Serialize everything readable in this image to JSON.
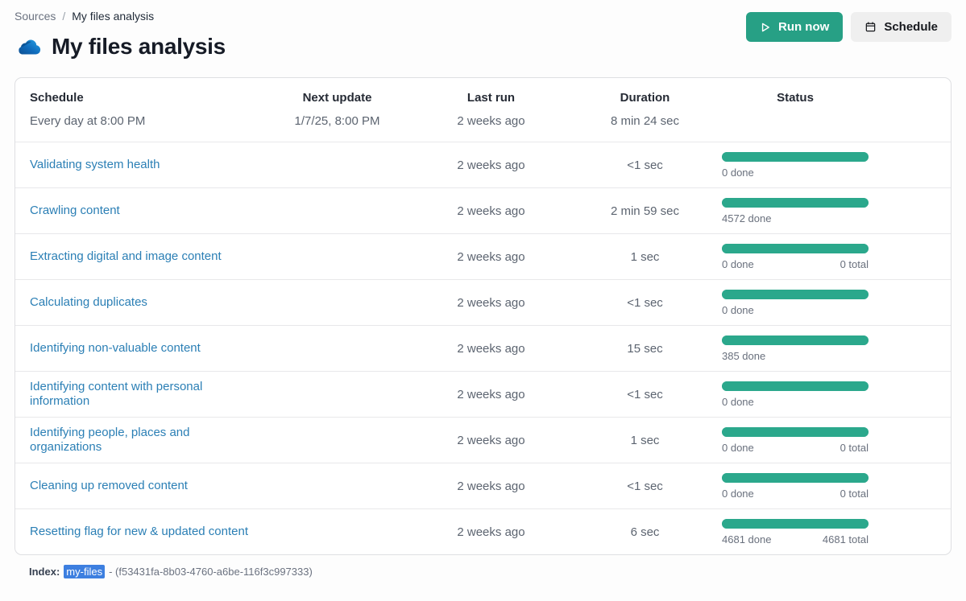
{
  "breadcrumb": {
    "sources": "Sources",
    "separator": "/",
    "current": "My files analysis"
  },
  "header": {
    "title": "My files analysis",
    "icon": "onedrive-cloud-icon",
    "run_now_label": "Run now",
    "schedule_label": "Schedule"
  },
  "table": {
    "columns": [
      "Schedule",
      "Next update",
      "Last run",
      "Duration",
      "Status"
    ],
    "summary": {
      "schedule": "Every day at 8:00 PM",
      "next_update": "1/7/25, 8:00 PM",
      "last_run": "2 weeks ago",
      "duration": "8 min 24 sec"
    },
    "rows": [
      {
        "task": "Validating system health",
        "last_run": "2 weeks ago",
        "duration": "<1 sec",
        "done": "0 done",
        "total": "",
        "progress_percent": 100
      },
      {
        "task": "Crawling content",
        "last_run": "2 weeks ago",
        "duration": "2 min 59 sec",
        "done": "4572 done",
        "total": "",
        "progress_percent": 100
      },
      {
        "task": "Extracting digital and image content",
        "last_run": "2 weeks ago",
        "duration": "1 sec",
        "done": "0 done",
        "total": "0 total",
        "progress_percent": 100
      },
      {
        "task": "Calculating duplicates",
        "last_run": "2 weeks ago",
        "duration": "<1 sec",
        "done": "0 done",
        "total": "",
        "progress_percent": 100
      },
      {
        "task": "Identifying non-valuable content",
        "last_run": "2 weeks ago",
        "duration": "15 sec",
        "done": "385 done",
        "total": "",
        "progress_percent": 100
      },
      {
        "task": "Identifying content with personal information",
        "last_run": "2 weeks ago",
        "duration": "<1 sec",
        "done": "0 done",
        "total": "",
        "progress_percent": 100
      },
      {
        "task": "Identifying people, places and organizations",
        "last_run": "2 weeks ago",
        "duration": "1 sec",
        "done": "0 done",
        "total": "0 total",
        "progress_percent": 100
      },
      {
        "task": "Cleaning up removed content",
        "last_run": "2 weeks ago",
        "duration": "<1 sec",
        "done": "0 done",
        "total": "0 total",
        "progress_percent": 100
      },
      {
        "task": "Resetting flag for new & updated content",
        "last_run": "2 weeks ago",
        "duration": "6 sec",
        "done": "4681 done",
        "total": "4681 total",
        "progress_percent": 100
      }
    ]
  },
  "footer": {
    "index_label": "Index:",
    "index_name": "my-files",
    "index_id": "- (f53431fa-8b03-4760-a6be-116f3c997333)"
  },
  "colors": {
    "accent_green": "#27a085",
    "progress_green": "#2ba88c",
    "link_blue": "#2b7fb5",
    "selection_blue": "#3d7fe0"
  }
}
